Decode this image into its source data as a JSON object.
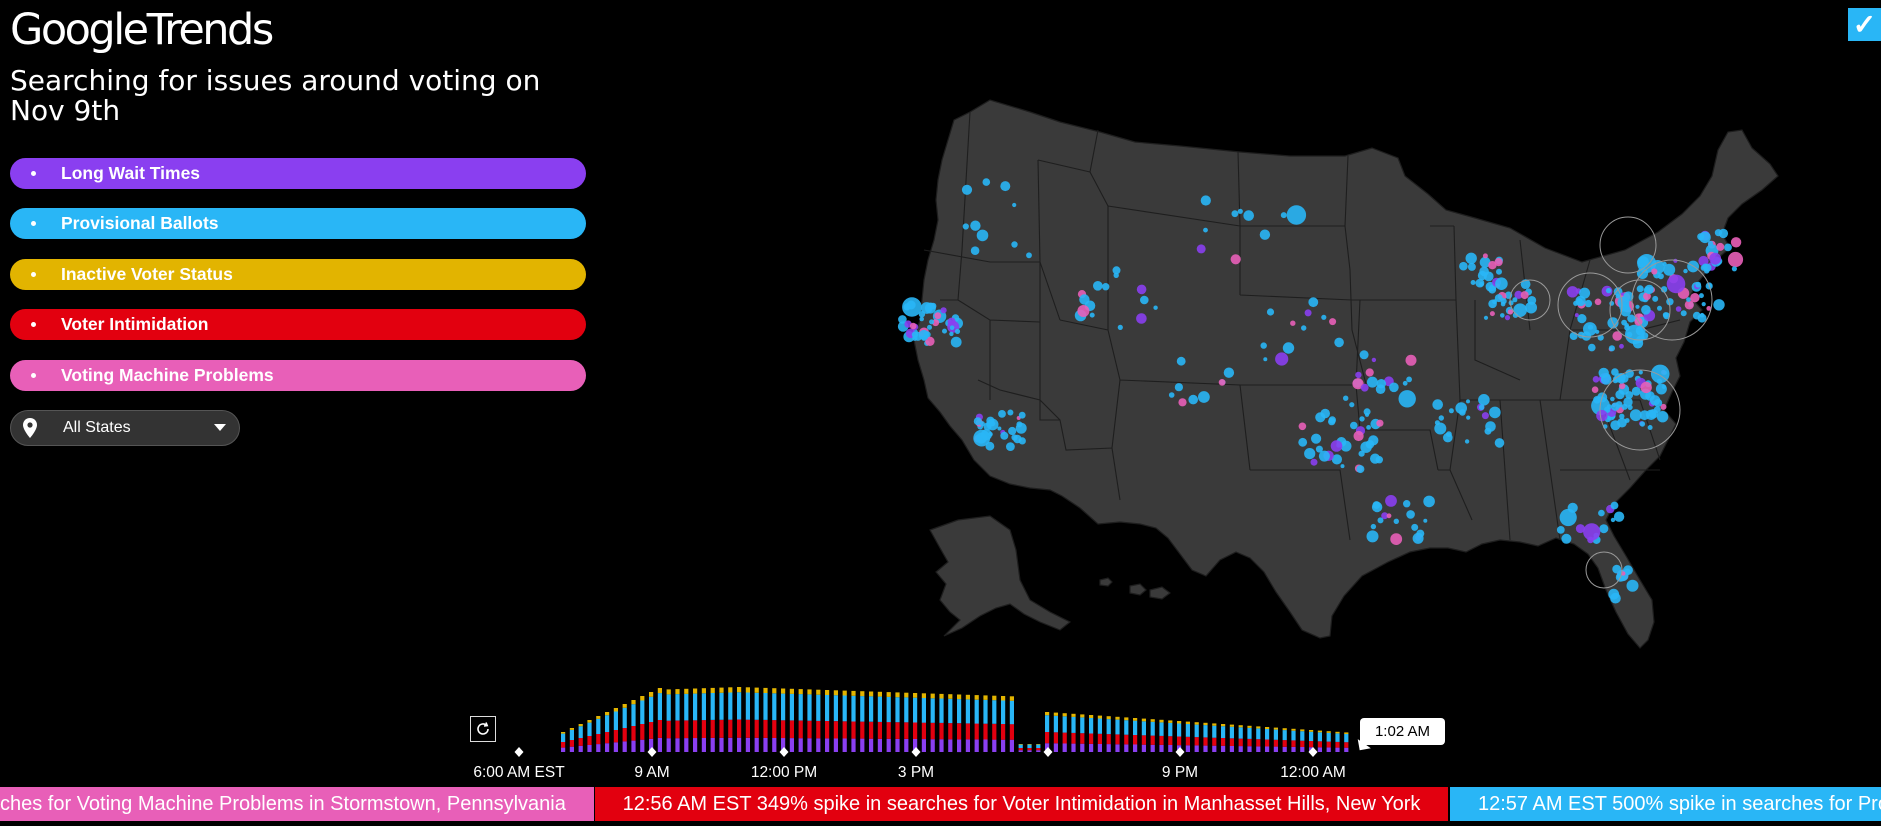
{
  "header": {
    "logo_google": "Google",
    "logo_trends": "Trends",
    "title": "Searching for issues around voting on Nov 9th"
  },
  "topics": [
    {
      "label": "Long Wait Times",
      "color": "#8a3ff0"
    },
    {
      "label": "Provisional Ballots",
      "color": "#29b6f6"
    },
    {
      "label": "Inactive Voter Status",
      "color": "#e2b400"
    },
    {
      "label": "Voter Intimidation",
      "color": "#e2000f"
    },
    {
      "label": "Voting Machine Problems",
      "color": "#e85fb8"
    }
  ],
  "state_filter": {
    "value": "All States",
    "icon": "location-pin-icon"
  },
  "map": {
    "background": "#3a3a3a",
    "borders": "#1e1e1e"
  },
  "timeline": {
    "replay_icon": "replay-icon",
    "labels": [
      "6:00 AM EST",
      "9 AM",
      "12:00 PM",
      "3 PM",
      "9 PM",
      "12:00 AM"
    ],
    "current_time": "1:02 AM"
  },
  "ticker": [
    {
      "text": "ches for Voting Machine Problems in Stormstown, Pennsylvania",
      "color": "#e85fb8"
    },
    {
      "text": "12:56 AM EST 349% spike in searches for Voter Intimidation in Manhasset Hills, New York",
      "color": "#e2000f"
    },
    {
      "text": "12:57 AM EST 500% spike in searches for Pro",
      "color": "#29b6f6"
    }
  ],
  "corner_checkbox": {
    "checked": true,
    "glyph": "✓"
  }
}
